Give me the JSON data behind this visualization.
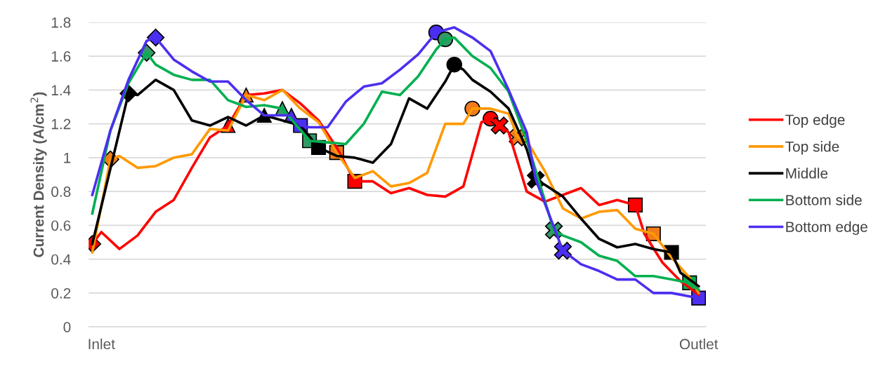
{
  "chart_data": {
    "type": "line",
    "ylabel": "Current Density (A/cm$^{2}$)",
    "categories": [
      null,
      "Inlet",
      null,
      null,
      null,
      null,
      null,
      null,
      null,
      null,
      null,
      null,
      null,
      null,
      null,
      null,
      null,
      null,
      null,
      null,
      null,
      null,
      null,
      null,
      null,
      null,
      null,
      null,
      null,
      null,
      null,
      null,
      null,
      null,
      null,
      null,
      null,
      null,
      null,
      null,
      null,
      null,
      null,
      null,
      null,
      null,
      null,
      null,
      null,
      null,
      null,
      null,
      null,
      null,
      null,
      null,
      null,
      null,
      null,
      null,
      null,
      null,
      null,
      null,
      null,
      null,
      null,
      "Outlet"
    ],
    "ylim": [
      0,
      1.8
    ],
    "yticks": [
      0,
      0.2,
      0.4,
      0.6,
      0.8,
      1,
      1.2,
      1.4,
      1.6,
      1.8
    ],
    "grid": "y",
    "legend": "right",
    "line_style": "solid",
    "series": [
      {
        "name": "Top edge",
        "color": "#ff0000",
        "values": [
          0.49,
          0.56,
          null,
          0.46,
          null,
          0.54,
          null,
          0.68,
          null,
          0.75,
          null,
          0.94,
          null,
          1.12,
          null,
          1.19,
          null,
          1.37,
          null,
          1.38,
          null,
          1.4,
          null,
          1.32,
          null,
          1.22,
          null,
          1.06,
          null,
          0.86,
          null,
          0.86,
          null,
          0.79,
          null,
          0.82,
          null,
          0.78,
          null,
          0.77,
          null,
          0.83,
          null,
          1.21,
          1.23,
          1.19,
          1.15,
          null,
          0.8,
          null,
          0.74,
          null,
          0.78,
          null,
          0.82,
          null,
          0.72,
          null,
          0.75,
          null,
          0.72,
          0.55,
          null,
          0.38,
          null,
          0.27,
          null,
          0.19
        ]
      },
      {
        "name": "Top side",
        "color": "#ff9900",
        "values": [
          0.44,
          null,
          0.99,
          1.01,
          null,
          0.94,
          null,
          0.95,
          null,
          1.0,
          null,
          1.02,
          null,
          1.17,
          null,
          1.16,
          null,
          1.37,
          null,
          1.34,
          null,
          1.4,
          null,
          1.29,
          null,
          1.21,
          null,
          1.03,
          null,
          0.88,
          null,
          0.92,
          null,
          0.83,
          null,
          0.85,
          null,
          0.91,
          null,
          1.2,
          null,
          1.2,
          1.29,
          null,
          1.29,
          null,
          1.26,
          1.12,
          1.1,
          null,
          0.92,
          null,
          0.7,
          null,
          0.64,
          null,
          0.68,
          null,
          0.69,
          null,
          0.58,
          null,
          0.55,
          null,
          0.41,
          null,
          0.29,
          0.2
        ]
      },
      {
        "name": "Middle",
        "color": "#000000",
        "values": [
          0.49,
          null,
          null,
          null,
          1.38,
          1.37,
          null,
          1.46,
          null,
          1.4,
          null,
          1.22,
          null,
          1.19,
          null,
          1.24,
          null,
          1.19,
          null,
          1.25,
          null,
          1.22,
          null,
          1.19,
          null,
          1.06,
          null,
          1.01,
          null,
          1.0,
          null,
          0.97,
          null,
          1.08,
          null,
          1.35,
          null,
          1.29,
          null,
          1.45,
          1.55,
          1.52,
          1.46,
          null,
          1.39,
          null,
          1.29,
          null,
          1.05,
          0.87,
          0.84,
          null,
          0.77,
          null,
          0.64,
          null,
          0.52,
          null,
          0.47,
          null,
          0.49,
          null,
          0.46,
          null,
          0.44,
          0.32,
          null,
          0.24
        ]
      },
      {
        "name": "Bottom side",
        "color": "#00b050",
        "values": [
          0.67,
          null,
          1.16,
          null,
          1.44,
          null,
          1.62,
          1.55,
          null,
          1.49,
          null,
          1.46,
          null,
          1.46,
          null,
          1.34,
          null,
          1.3,
          null,
          1.31,
          null,
          1.29,
          null,
          null,
          1.1,
          null,
          1.09,
          null,
          1.08,
          null,
          1.2,
          null,
          1.39,
          null,
          1.37,
          null,
          1.48,
          null,
          1.64,
          1.7,
          1.71,
          null,
          1.6,
          null,
          1.53,
          null,
          1.39,
          null,
          1.1,
          null,
          null,
          0.57,
          0.54,
          null,
          0.5,
          null,
          0.42,
          null,
          0.39,
          null,
          0.3,
          null,
          0.3,
          null,
          0.28,
          null,
          0.26,
          0.22
        ]
      },
      {
        "name": "Bottom edge",
        "color": "#4b2ff0",
        "values": [
          0.78,
          null,
          1.16,
          null,
          1.46,
          null,
          1.69,
          1.71,
          null,
          1.58,
          null,
          1.51,
          null,
          1.45,
          null,
          1.45,
          null,
          1.34,
          null,
          1.25,
          null,
          1.25,
          1.25,
          1.19,
          1.18,
          null,
          1.18,
          null,
          1.33,
          null,
          1.42,
          null,
          1.44,
          null,
          1.52,
          null,
          1.61,
          null,
          1.74,
          null,
          1.77,
          null,
          1.71,
          null,
          1.63,
          null,
          1.4,
          null,
          1.15,
          0.87,
          null,
          null,
          0.45,
          null,
          0.37,
          null,
          0.33,
          null,
          0.28,
          null,
          0.28,
          null,
          0.2,
          null,
          0.2,
          null,
          null,
          0.17
        ]
      },
      {
        "type": "scatter",
        "marker": "diamond",
        "colors": [
          "#ff0000",
          null,
          "#f07c1c",
          null,
          "#000000",
          null,
          "#339966",
          "#4b2ff0",
          null,
          null,
          null,
          null,
          null,
          null,
          null,
          null,
          null,
          null,
          null,
          null,
          null,
          null,
          null,
          null,
          null,
          null,
          null,
          null,
          null,
          null,
          null,
          null,
          null,
          null,
          null,
          null,
          null,
          null,
          null,
          null,
          null,
          null,
          null,
          null,
          null,
          null,
          null,
          null,
          null,
          null,
          null,
          null,
          null,
          null,
          null,
          null,
          null,
          null,
          null,
          null,
          null,
          null,
          null,
          null,
          null,
          null,
          null,
          null
        ],
        "values": [
          0.49,
          null,
          0.99,
          null,
          1.38,
          null,
          1.62,
          1.71,
          null,
          null,
          null,
          null,
          null,
          null,
          null,
          null,
          null,
          null,
          null,
          null,
          null,
          null,
          null,
          null,
          null,
          null,
          null,
          null,
          null,
          null,
          null,
          null,
          null,
          null,
          null,
          null,
          null,
          null,
          null,
          null,
          null,
          null,
          null,
          null,
          null,
          null,
          null,
          null,
          null,
          null,
          null,
          null,
          null,
          null,
          null,
          null,
          null,
          null,
          null,
          null,
          null,
          null,
          null,
          null,
          null,
          null,
          null,
          null
        ]
      },
      {
        "type": "scatter",
        "marker": "triangle",
        "colors": [
          null,
          null,
          null,
          null,
          null,
          null,
          null,
          null,
          null,
          null,
          null,
          null,
          null,
          null,
          null,
          "#ff0000",
          null,
          "#f07c1c",
          null,
          "#000000",
          null,
          "#339966",
          "#4b2ff0",
          null,
          null,
          null,
          null,
          null,
          null,
          null,
          null,
          null,
          null,
          null,
          null,
          null,
          null,
          null,
          null,
          null,
          null,
          null,
          null,
          null,
          null,
          null,
          null,
          null,
          null,
          null,
          null,
          null,
          null,
          null,
          null,
          null,
          null,
          null,
          null,
          null,
          null,
          null,
          null,
          null,
          null,
          null,
          null,
          null
        ],
        "values": [
          null,
          null,
          null,
          null,
          null,
          null,
          null,
          null,
          null,
          null,
          null,
          null,
          null,
          null,
          null,
          1.19,
          null,
          1.37,
          null,
          1.25,
          null,
          1.29,
          1.25,
          null,
          null,
          null,
          null,
          null,
          null,
          null,
          null,
          null,
          null,
          null,
          null,
          null,
          null,
          null,
          null,
          null,
          null,
          null,
          null,
          null,
          null,
          null,
          null,
          null,
          null,
          null,
          null,
          null,
          null,
          null,
          null,
          null,
          null,
          null,
          null,
          null,
          null,
          null,
          null,
          null,
          null,
          null,
          null,
          null
        ]
      },
      {
        "type": "scatter",
        "marker": "square",
        "colors": [
          null,
          null,
          null,
          null,
          null,
          null,
          null,
          null,
          null,
          null,
          null,
          null,
          null,
          null,
          null,
          null,
          null,
          null,
          null,
          null,
          null,
          null,
          null,
          "#4b2ff0",
          "#339966",
          "#000000",
          null,
          "#f07c1c",
          null,
          "#ff0000",
          null,
          null,
          null,
          null,
          null,
          null,
          null,
          null,
          null,
          null,
          null,
          null,
          null,
          null,
          null,
          null,
          null,
          null,
          null,
          null,
          null,
          null,
          null,
          null,
          null,
          null,
          null,
          null,
          null,
          null,
          null,
          null,
          null,
          null,
          null,
          null,
          null,
          null
        ],
        "values": [
          null,
          null,
          null,
          null,
          null,
          null,
          null,
          null,
          null,
          null,
          null,
          null,
          null,
          null,
          null,
          null,
          null,
          null,
          null,
          null,
          null,
          null,
          null,
          1.19,
          1.1,
          1.06,
          null,
          1.03,
          null,
          0.86,
          null,
          null,
          null,
          null,
          null,
          null,
          null,
          null,
          null,
          null,
          null,
          null,
          null,
          null,
          null,
          null,
          null,
          null,
          null,
          null,
          null,
          null,
          null,
          null,
          null,
          null,
          null,
          null,
          null,
          null,
          null,
          null,
          null,
          null,
          null,
          null,
          null,
          null
        ]
      },
      {
        "type": "scatter",
        "marker": "circle",
        "colors": [
          null,
          null,
          null,
          null,
          null,
          null,
          null,
          null,
          null,
          null,
          null,
          null,
          null,
          null,
          null,
          null,
          null,
          null,
          null,
          null,
          null,
          null,
          null,
          null,
          null,
          null,
          null,
          null,
          null,
          null,
          null,
          null,
          null,
          null,
          null,
          null,
          null,
          null,
          "#4b2ff0",
          "#339966",
          "#000000",
          null,
          "#f07c1c",
          null,
          "#ff0000",
          null,
          null,
          null,
          null,
          null,
          null,
          null,
          null,
          null,
          null,
          null,
          null,
          null,
          null,
          null,
          null,
          null,
          null,
          null,
          null,
          null,
          null,
          null
        ],
        "values": [
          null,
          null,
          null,
          null,
          null,
          null,
          null,
          null,
          null,
          null,
          null,
          null,
          null,
          null,
          null,
          null,
          null,
          null,
          null,
          null,
          null,
          null,
          null,
          null,
          null,
          null,
          null,
          null,
          null,
          null,
          null,
          null,
          null,
          null,
          null,
          null,
          null,
          null,
          1.74,
          1.7,
          1.55,
          null,
          1.29,
          null,
          1.23,
          null,
          null,
          null,
          null,
          null,
          null,
          null,
          null,
          null,
          null,
          null,
          null,
          null,
          null,
          null,
          null,
          null,
          null,
          null,
          null,
          null,
          null,
          null
        ]
      },
      {
        "type": "scatter",
        "marker": "cross",
        "colors": [
          null,
          null,
          null,
          null,
          null,
          null,
          null,
          null,
          null,
          null,
          null,
          null,
          null,
          null,
          null,
          null,
          null,
          null,
          null,
          null,
          null,
          null,
          null,
          null,
          null,
          null,
          null,
          null,
          null,
          null,
          null,
          null,
          null,
          null,
          null,
          null,
          null,
          null,
          null,
          null,
          null,
          null,
          null,
          null,
          null,
          "#ff0000",
          null,
          "#f07c1c",
          null,
          "#000000",
          null,
          "#339966",
          "#4b2ff0",
          null,
          null,
          null,
          null,
          null,
          null,
          null,
          null,
          null,
          null,
          null,
          null,
          null,
          null,
          null
        ],
        "values": [
          null,
          null,
          null,
          null,
          null,
          null,
          null,
          null,
          null,
          null,
          null,
          null,
          null,
          null,
          null,
          null,
          null,
          null,
          null,
          null,
          null,
          null,
          null,
          null,
          null,
          null,
          null,
          null,
          null,
          null,
          null,
          null,
          null,
          null,
          null,
          null,
          null,
          null,
          null,
          null,
          null,
          null,
          null,
          null,
          null,
          1.19,
          null,
          1.12,
          null,
          0.87,
          null,
          0.57,
          0.45,
          null,
          null,
          null,
          null,
          null,
          null,
          null,
          null,
          null,
          null,
          null,
          null,
          null,
          null,
          null
        ]
      },
      {
        "type": "scatter",
        "marker": "square",
        "colors": [
          null,
          null,
          null,
          null,
          null,
          null,
          null,
          null,
          null,
          null,
          null,
          null,
          null,
          null,
          null,
          null,
          null,
          null,
          null,
          null,
          null,
          null,
          null,
          null,
          null,
          null,
          null,
          null,
          null,
          null,
          null,
          null,
          null,
          null,
          null,
          null,
          null,
          null,
          null,
          null,
          null,
          null,
          null,
          null,
          null,
          null,
          null,
          null,
          null,
          null,
          null,
          null,
          null,
          null,
          null,
          null,
          null,
          null,
          null,
          null,
          "#ff0000",
          null,
          "#f07c1c",
          null,
          "#000000",
          null,
          "#00b050",
          "#4b2ff0"
        ],
        "values": [
          null,
          null,
          null,
          null,
          null,
          null,
          null,
          null,
          null,
          null,
          null,
          null,
          null,
          null,
          null,
          null,
          null,
          null,
          null,
          null,
          null,
          null,
          null,
          null,
          null,
          null,
          null,
          null,
          null,
          null,
          null,
          null,
          null,
          null,
          null,
          null,
          null,
          null,
          null,
          null,
          null,
          null,
          null,
          null,
          null,
          null,
          null,
          null,
          null,
          null,
          null,
          null,
          null,
          null,
          null,
          null,
          null,
          null,
          null,
          null,
          0.72,
          null,
          0.55,
          null,
          0.44,
          null,
          0.26,
          0.17
        ]
      }
    ]
  }
}
